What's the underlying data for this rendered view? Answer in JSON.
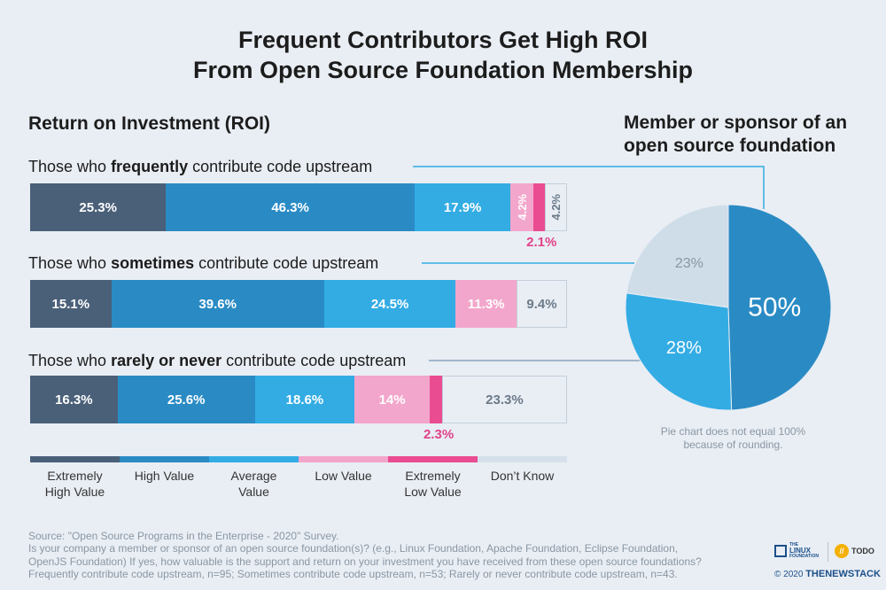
{
  "title_line1": "Frequent Contributors Get High ROI",
  "title_line2": "From Open Source Foundation Membership",
  "section_title": "Return on Investment (ROI)",
  "pie_title_line1": "Member or sponsor of an",
  "pie_title_line2": "open source foundation",
  "pie_note_line1": "Pie chart does not equal 100%",
  "pie_note_line2": "because of rounding.",
  "footer_lines": [
    "Source: \"Open Source Programs in the Enterprise - 2020\" Survey.",
    "Is your company a member or sponsor of an open source foundation(s)? (e.g., Linux Foundation, Apache Foundation, Eclipse Foundation,",
    "OpenJS Foundation) If yes, how valuable is the support and return on your investment you have received from these open source foundations?",
    "Frequently contribute code upstream, n=95; Sometimes contribute code upstream, n=53;  Rarely or never contribute code upstream, n=43."
  ],
  "logos": {
    "lf_line1": "THE",
    "lf_line2": "LINUX",
    "lf_line3": "FOUNDATION",
    "todo": "TODO",
    "todo_mark": "//",
    "copyright": "© 2020",
    "brand": "THENEWSTACK"
  },
  "colors": {
    "extremely_high": "#4a6079",
    "high": "#2a8bc4",
    "average": "#33ace4",
    "low": "#f3a6cb",
    "extremely_low": "#e94c91",
    "dont_know": "#e9eef4",
    "pie_dark": "#2a8bc4",
    "pie_mid": "#33ace4",
    "pie_light": "#cfdde9"
  },
  "chart_data": [
    {
      "type": "bar",
      "orientation": "horizontal-stacked",
      "title": "Return on Investment (ROI)",
      "legend_placement": "bottom",
      "series": [
        {
          "name": "Extremely High Value",
          "name_lines": [
            "Extremely",
            "High Value"
          ]
        },
        {
          "name": "High Value",
          "name_lines": [
            "High Value"
          ]
        },
        {
          "name": "Average Value",
          "name_lines": [
            "Average",
            "Value"
          ]
        },
        {
          "name": "Low Value",
          "name_lines": [
            "Low Value"
          ]
        },
        {
          "name": "Extremely Low Value",
          "name_lines": [
            "Extremely",
            "Low Value"
          ]
        },
        {
          "name": "Don’t Know",
          "name_lines": [
            "Don’t Know"
          ]
        }
      ],
      "rows": [
        {
          "label_pre": "Those who ",
          "label_bold": "frequently",
          "label_post": " contribute code upstream",
          "values": [
            25.3,
            46.3,
            17.9,
            4.2,
            2.1,
            4.2
          ],
          "labels": [
            "25.3%",
            "46.3%",
            "17.9%",
            "4.2%",
            "2.1%",
            "4.2%"
          ]
        },
        {
          "label_pre": "Those who ",
          "label_bold": "sometimes",
          "label_post": " contribute code upstream",
          "values": [
            15.1,
            39.6,
            24.5,
            11.3,
            0,
            9.4
          ],
          "labels": [
            "15.1%",
            "39.6%",
            "24.5%",
            "11.3%",
            "",
            "9.4%"
          ]
        },
        {
          "label_pre": "Those who ",
          "label_bold": "rarely or never",
          "label_post": " contribute code upstream",
          "values": [
            16.3,
            25.6,
            18.6,
            14,
            2.3,
            23.3
          ],
          "labels": [
            "16.3%",
            "25.6%",
            "18.6%",
            "14%",
            "2.3%",
            "23.3%"
          ]
        }
      ]
    },
    {
      "type": "pie",
      "title": "Member or sponsor of an open source foundation",
      "values": [
        50,
        28,
        23
      ],
      "labels": [
        "50%",
        "28%",
        "23%"
      ]
    }
  ]
}
